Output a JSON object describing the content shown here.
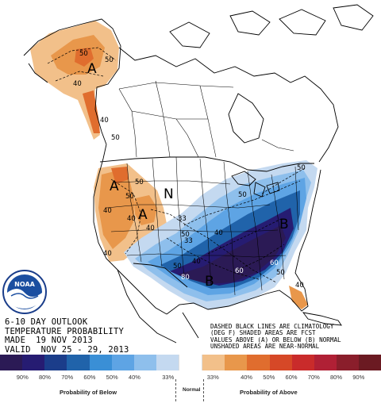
{
  "map": {
    "region_labels": [
      {
        "text": "A"
      },
      {
        "text": "A"
      },
      {
        "text": "A"
      },
      {
        "text": "N"
      },
      {
        "text": "B"
      },
      {
        "text": "B"
      }
    ],
    "contour_labels": [
      "50",
      "40",
      "50",
      "40",
      "50",
      "50",
      "50",
      "40",
      "40",
      "33",
      "33",
      "40",
      "50",
      "40",
      "40",
      "50",
      "40",
      "60",
      "80",
      "60",
      "50",
      "40",
      "50",
      "50"
    ]
  },
  "outlook": {
    "line1": "6-10 DAY OUTLOOK",
    "line2": "TEMPERATURE PROBABILITY",
    "line3": "MADE  19 NOV 2013",
    "line4": "VALID  NOV 25 - 29, 2013"
  },
  "notes": {
    "line1": "DASHED BLACK LINES ARE CLIMATOLOGY",
    "line2": "(DEG F) SHADED AREAS ARE FCST",
    "line3": "VALUES ABOVE (A) OR BELOW (B) NORMAL",
    "line4": "UNSHADED AREAS ARE NEAR-NORMAL"
  },
  "logo": {
    "text": "NOAA"
  },
  "legend": {
    "colors": [
      "#2b1a55",
      "#261c72",
      "#1b3d8a",
      "#2063aa",
      "#3a8fd6",
      "#5ea4e4",
      "#8ebfec",
      "#c4d9f0",
      "#ffffff",
      "#f2c08a",
      "#e8974b",
      "#e06d2e",
      "#d64827",
      "#c92b2b",
      "#b02035",
      "#8a1e2b",
      "#6b1a22"
    ],
    "ticks": [
      "90%",
      "80%",
      "70%",
      "60%",
      "50%",
      "40%",
      "33%",
      "33%",
      "40%",
      "50%",
      "60%",
      "70%",
      "80%",
      "90%"
    ],
    "below_label": "Probability of Below",
    "normal_label": "Normal",
    "above_label": "Probability of Above"
  }
}
